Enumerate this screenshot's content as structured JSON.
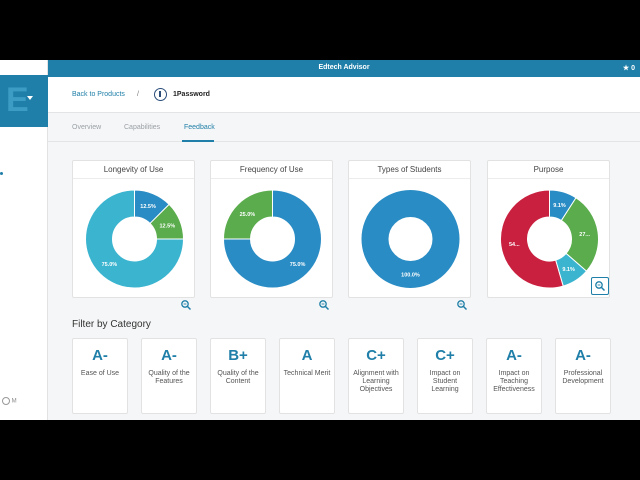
{
  "app": {
    "title": "Edtech Advisor",
    "favorites_count": "0"
  },
  "sidebar": {
    "logo_glyph": "E",
    "footer_text": "M"
  },
  "header": {
    "back_label": "Back to Products",
    "separator": "/",
    "product_name": "1Password",
    "product_icon": "1password-logo-icon"
  },
  "tabs": [
    {
      "label": "Overview",
      "active": false
    },
    {
      "label": "Capabilities",
      "active": false
    },
    {
      "label": "Feedback",
      "active": true
    }
  ],
  "colors": {
    "brand": "#1f7fa8",
    "light_blue": "#3ab4cf",
    "dark_blue": "#2a8cc4",
    "green": "#5aac4c",
    "red": "#c9203f"
  },
  "chart_data": [
    {
      "type": "pie",
      "title": "Longevity of Use",
      "slices": [
        {
          "value": 12.5,
          "label": "12.5%",
          "color": "#2a8cc4"
        },
        {
          "value": 12.5,
          "label": "12.5%",
          "color": "#5aac4c"
        },
        {
          "value": 75.0,
          "label": "75.0%",
          "color": "#3ab4cf"
        }
      ]
    },
    {
      "type": "pie",
      "title": "Frequency of Use",
      "slices": [
        {
          "value": 75.0,
          "label": "75.0%",
          "color": "#2a8cc4"
        },
        {
          "value": 25.0,
          "label": "25.0%",
          "color": "#5aac4c"
        }
      ]
    },
    {
      "type": "pie",
      "title": "Types of Students",
      "slices": [
        {
          "value": 100.0,
          "label": "100.0%",
          "color": "#2a8cc4"
        }
      ]
    },
    {
      "type": "pie",
      "title": "Purpose",
      "slices": [
        {
          "value": 9.1,
          "label": "9.1%",
          "color": "#2a8cc4"
        },
        {
          "value": 27.3,
          "label": "27...",
          "color": "#5aac4c"
        },
        {
          "value": 9.1,
          "label": "9.1%",
          "color": "#3ab4cf"
        },
        {
          "value": 54.5,
          "label": "54...",
          "color": "#c9203f"
        }
      ]
    }
  ],
  "filter": {
    "title": "Filter by Category",
    "categories": [
      {
        "grade": "A-",
        "label": "Ease of Use"
      },
      {
        "grade": "A-",
        "label": "Quality of the Features"
      },
      {
        "grade": "B+",
        "label": "Quality of the Content"
      },
      {
        "grade": "A",
        "label": "Technical Merit"
      },
      {
        "grade": "C+",
        "label": "Alignment with Learning Objectives"
      },
      {
        "grade": "C+",
        "label": "Impact on Student Learning"
      },
      {
        "grade": "A-",
        "label": "Impact on Teaching Effectiveness"
      },
      {
        "grade": "A-",
        "label": "Professional Development"
      }
    ]
  }
}
